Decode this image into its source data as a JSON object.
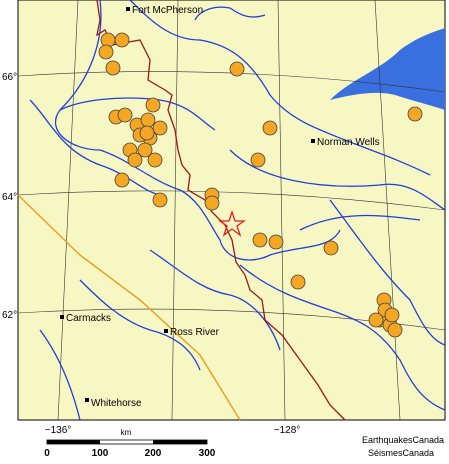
{
  "places": [
    "Fort McPherson",
    "Norman Wells",
    "Carmacks",
    "Ross River",
    "Whitehorse"
  ],
  "latitude_labels": [
    "66°",
    "64°",
    "62°"
  ],
  "longitude_labels": [
    "−136°",
    "−128°"
  ],
  "scale_bar": {
    "unit": "km",
    "ticks": [
      "0",
      "100",
      "200",
      "300"
    ]
  },
  "credits": [
    "EarthquakesCanada",
    "SéismesCanada"
  ]
}
